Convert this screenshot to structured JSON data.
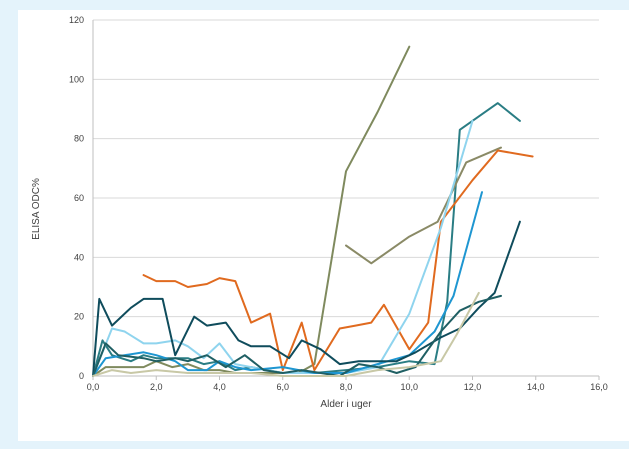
{
  "chart_data": {
    "type": "line",
    "title": "",
    "xlabel": "Alder i uger",
    "ylabel": "ELISA ODC%",
    "xlim": [
      0,
      16
    ],
    "ylim": [
      0,
      120
    ],
    "x_ticks": [
      "0,0",
      "2,0",
      "4,0",
      "6,0",
      "8,0",
      "10,0",
      "12,0",
      "14,0",
      "16,0"
    ],
    "y_ticks": [
      "0",
      "20",
      "40",
      "60",
      "80",
      "100",
      "120"
    ],
    "grid": "horizontal",
    "legend": "none",
    "series": [
      {
        "color": "#7f8a5e",
        "points": [
          [
            0.0,
            0
          ],
          [
            0.4,
            3
          ],
          [
            1.0,
            3
          ],
          [
            1.6,
            3
          ],
          [
            2.0,
            5
          ],
          [
            2.5,
            3
          ],
          [
            3.0,
            4
          ],
          [
            3.5,
            2
          ],
          [
            4.0,
            2
          ],
          [
            4.5,
            1
          ],
          [
            5.0,
            1
          ],
          [
            5.5,
            1
          ],
          [
            6.0,
            1
          ],
          [
            6.5,
            1
          ],
          [
            7.0,
            4
          ],
          [
            8.0,
            69
          ],
          [
            9.0,
            89
          ],
          [
            10.0,
            111
          ]
        ]
      },
      {
        "color": "#2a7d84",
        "points": [
          [
            0.0,
            0
          ],
          [
            0.3,
            12
          ],
          [
            0.6,
            7
          ],
          [
            1.2,
            5
          ],
          [
            1.6,
            7
          ],
          [
            2.0,
            6
          ],
          [
            2.5,
            6
          ],
          [
            3.0,
            6
          ],
          [
            3.5,
            4
          ],
          [
            4.0,
            5
          ],
          [
            4.5,
            2
          ],
          [
            5.0,
            3
          ],
          [
            6.0,
            1
          ],
          [
            7.0,
            1
          ],
          [
            8.0,
            2
          ],
          [
            9.0,
            3
          ],
          [
            10.0,
            5
          ],
          [
            10.8,
            4
          ],
          [
            11.2,
            25
          ],
          [
            11.6,
            83
          ],
          [
            12.8,
            92
          ],
          [
            13.5,
            86
          ]
        ]
      },
      {
        "color": "#8a8a66",
        "points": [
          [
            8.0,
            44
          ],
          [
            8.8,
            38
          ],
          [
            10.0,
            47
          ],
          [
            10.9,
            52
          ],
          [
            11.8,
            72
          ],
          [
            12.9,
            77
          ]
        ]
      },
      {
        "color": "#e06a1f",
        "points": [
          [
            1.6,
            34
          ],
          [
            2.0,
            32
          ],
          [
            2.6,
            32
          ],
          [
            3.0,
            30
          ],
          [
            3.6,
            31
          ],
          [
            4.0,
            33
          ],
          [
            4.5,
            32
          ],
          [
            5.0,
            18
          ],
          [
            5.6,
            21
          ],
          [
            6.0,
            2
          ],
          [
            6.6,
            18
          ],
          [
            7.0,
            2
          ],
          [
            7.8,
            16
          ],
          [
            8.3,
            17
          ],
          [
            8.8,
            18
          ],
          [
            9.2,
            24
          ],
          [
            10.0,
            9
          ],
          [
            10.6,
            18
          ],
          [
            11.0,
            52
          ],
          [
            12.0,
            66
          ],
          [
            12.8,
            76
          ],
          [
            13.9,
            74
          ]
        ]
      },
      {
        "color": "#8fd4ee",
        "points": [
          [
            0.0,
            0
          ],
          [
            0.6,
            16
          ],
          [
            1.0,
            15
          ],
          [
            1.6,
            11
          ],
          [
            2.0,
            11
          ],
          [
            2.6,
            12
          ],
          [
            3.0,
            10
          ],
          [
            3.5,
            6
          ],
          [
            4.0,
            11
          ],
          [
            4.5,
            4
          ],
          [
            5.0,
            3
          ],
          [
            6.0,
            1
          ],
          [
            7.0,
            1
          ],
          [
            8.0,
            1
          ],
          [
            9.0,
            3
          ],
          [
            10.0,
            21
          ],
          [
            11.0,
            50
          ],
          [
            12.0,
            86
          ]
        ]
      },
      {
        "color": "#1e96d1",
        "points": [
          [
            0.0,
            0
          ],
          [
            0.4,
            6
          ],
          [
            1.0,
            7
          ],
          [
            1.6,
            8
          ],
          [
            2.0,
            7
          ],
          [
            2.6,
            5
          ],
          [
            3.0,
            2
          ],
          [
            3.6,
            2
          ],
          [
            4.0,
            5
          ],
          [
            4.5,
            3
          ],
          [
            5.0,
            2
          ],
          [
            6.0,
            3
          ],
          [
            7.0,
            1
          ],
          [
            8.0,
            1
          ],
          [
            9.0,
            4
          ],
          [
            10.0,
            7
          ],
          [
            10.8,
            15
          ],
          [
            11.4,
            27
          ],
          [
            12.3,
            62
          ]
        ]
      },
      {
        "color": "#0f4c5c",
        "points": [
          [
            0.0,
            0
          ],
          [
            0.2,
            26
          ],
          [
            0.6,
            17
          ],
          [
            1.2,
            23
          ],
          [
            1.6,
            26
          ],
          [
            2.2,
            26
          ],
          [
            2.6,
            7
          ],
          [
            3.2,
            20
          ],
          [
            3.6,
            17
          ],
          [
            4.2,
            18
          ],
          [
            4.6,
            12
          ],
          [
            5.0,
            10
          ],
          [
            5.6,
            10
          ],
          [
            6.2,
            6
          ],
          [
            6.6,
            12
          ],
          [
            7.2,
            9
          ],
          [
            7.8,
            4
          ],
          [
            8.4,
            5
          ],
          [
            9.0,
            5
          ],
          [
            9.6,
            5
          ],
          [
            10.2,
            8
          ],
          [
            11.0,
            13
          ],
          [
            11.6,
            16
          ],
          [
            12.2,
            23
          ],
          [
            12.7,
            28
          ],
          [
            13.5,
            52
          ]
        ]
      },
      {
        "color": "#1f5f63",
        "points": [
          [
            0.0,
            0
          ],
          [
            0.4,
            11
          ],
          [
            0.8,
            7
          ],
          [
            1.6,
            6
          ],
          [
            2.0,
            5
          ],
          [
            2.6,
            6
          ],
          [
            3.0,
            5
          ],
          [
            3.6,
            7
          ],
          [
            4.2,
            3
          ],
          [
            4.8,
            7
          ],
          [
            5.4,
            2
          ],
          [
            6.0,
            1
          ],
          [
            6.6,
            2
          ],
          [
            7.2,
            1
          ],
          [
            7.8,
            0
          ],
          [
            8.4,
            4
          ],
          [
            9.0,
            3
          ],
          [
            9.6,
            1
          ],
          [
            10.2,
            3
          ],
          [
            11.0,
            15
          ],
          [
            11.6,
            22
          ],
          [
            12.2,
            25
          ],
          [
            12.9,
            27
          ]
        ]
      },
      {
        "color": "#c8c8a6",
        "points": [
          [
            0.0,
            0
          ],
          [
            0.6,
            2
          ],
          [
            1.2,
            1
          ],
          [
            2.0,
            2
          ],
          [
            3.0,
            1
          ],
          [
            4.0,
            1
          ],
          [
            5.0,
            1
          ],
          [
            6.0,
            0
          ],
          [
            7.0,
            0
          ],
          [
            8.0,
            0
          ],
          [
            9.0,
            2
          ],
          [
            10.0,
            3
          ],
          [
            11.0,
            5
          ],
          [
            11.5,
            14
          ],
          [
            12.2,
            28
          ]
        ]
      }
    ]
  }
}
